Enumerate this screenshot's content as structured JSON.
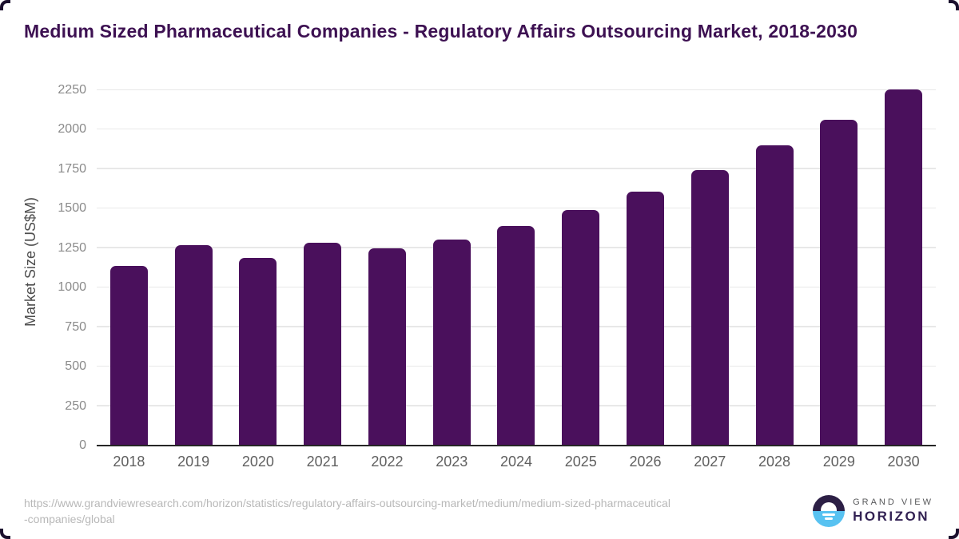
{
  "title": "Medium Sized Pharmaceutical Companies - Regulatory Affairs Outsourcing Market, 2018-2030",
  "chart_data": {
    "type": "bar",
    "title": "Medium Sized Pharmaceutical Companies - Regulatory Affairs Outsourcing Market, 2018-2030",
    "categories": [
      "2018",
      "2019",
      "2020",
      "2021",
      "2022",
      "2023",
      "2024",
      "2025",
      "2026",
      "2027",
      "2028",
      "2029",
      "2030"
    ],
    "values": [
      1140,
      1270,
      1190,
      1285,
      1250,
      1305,
      1390,
      1490,
      1610,
      1745,
      1900,
      2065,
      2255
    ],
    "xlabel": "",
    "ylabel": "Market Size (US$M)",
    "ylim": [
      0,
      2250
    ],
    "yticks": [
      0,
      250,
      500,
      750,
      1000,
      1250,
      1500,
      1750,
      2000,
      2250
    ],
    "grid": "horizontal",
    "legend": "none",
    "bar_color": "#4a105c"
  },
  "footer": {
    "url_line1": "https://www.grandviewresearch.com/horizon/statistics/regulatory-affairs-outsourcing-market/medium/medium-sized-pharmaceutical",
    "url_line2": "-companies/global",
    "logo_top": "GRAND VIEW",
    "logo_bottom": "HORIZON"
  },
  "colors": {
    "bar": "#4a105c",
    "title": "#3d1152",
    "grid": "#e8e8e8",
    "axis": "#262626",
    "tick": "#8a8a8a",
    "xlabel": "#606060",
    "url": "#b8b8b8",
    "logo-dark": "#2c1f45",
    "logo-blue": "#58c2f1",
    "logo-top-text": "#58595b",
    "logo-bottom-text": "#322153",
    "corner": "#1b102e"
  }
}
